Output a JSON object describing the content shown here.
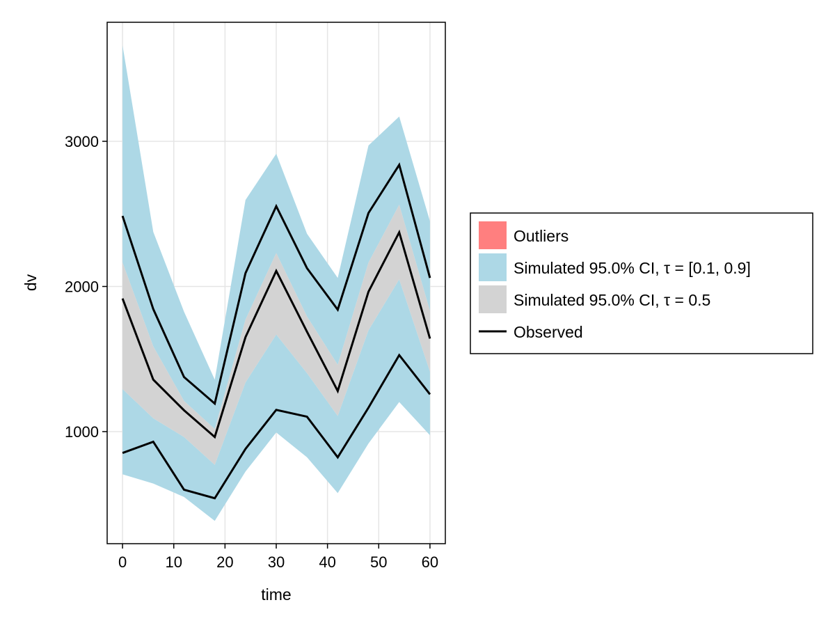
{
  "chart_data": {
    "type": "area",
    "xlabel": "time",
    "ylabel": "dv",
    "xlim": [
      -3,
      63
    ],
    "ylim": [
      228,
      3820
    ],
    "xticks": [
      0,
      10,
      20,
      30,
      40,
      50,
      60
    ],
    "yticks": [
      1000,
      2000,
      3000
    ],
    "grid": true,
    "legend_position": "right",
    "x": [
      0,
      6,
      12,
      18,
      24,
      30,
      36,
      42,
      48,
      54,
      60
    ],
    "bands": [
      {
        "name": "Simulated 95.0% CI, τ = [0.1, 0.9]",
        "role": "upper",
        "color": "#add8e6",
        "lower": [
          2165,
          1587,
          1211,
          1018,
          1771,
          2230,
          1793,
          1460,
          2164,
          2563,
          1831
        ],
        "upper": [
          3662,
          2376,
          1826,
          1358,
          2596,
          2914,
          2363,
          2059,
          2971,
          3171,
          2449
        ]
      },
      {
        "name": "Simulated 95.0% CI, τ = [0.1, 0.9]",
        "role": "lower",
        "color": "#add8e6",
        "lower": [
          706,
          642,
          550,
          385,
          725,
          994,
          823,
          576,
          918,
          1204,
          975
        ],
        "upper": [
          1293,
          1092,
          963,
          771,
          1339,
          1669,
          1403,
          1108,
          1698,
          2049,
          1413
        ]
      },
      {
        "name": "Simulated 95.0% CI, τ = 0.5",
        "role": "median",
        "color": "#d3d3d3",
        "lower": [
          1293,
          1092,
          963,
          771,
          1339,
          1669,
          1403,
          1108,
          1698,
          2049,
          1413
        ],
        "upper": [
          2165,
          1587,
          1211,
          1018,
          1771,
          2230,
          1793,
          1460,
          2164,
          2563,
          1831
        ]
      }
    ],
    "observed": {
      "name": "Observed",
      "color": "#000000",
      "lines": [
        [
          2486,
          1844,
          1376,
          1193,
          2092,
          2553,
          2126,
          1840,
          2506,
          2838,
          2059
        ],
        [
          1917,
          1358,
          1147,
          963,
          1651,
          2107,
          1688,
          1280,
          1964,
          2373,
          1641
        ],
        [
          853,
          930,
          600,
          541,
          881,
          1150,
          1103,
          823,
          1165,
          1527,
          1257
        ]
      ]
    },
    "legend": [
      {
        "label": "Outliers",
        "color": "#ff7f7f",
        "kind": "patch"
      },
      {
        "label": "Simulated 95.0% CI, τ = [0.1, 0.9]",
        "color": "#add8e6",
        "kind": "patch"
      },
      {
        "label": "Simulated 95.0% CI, τ = 0.5",
        "color": "#d3d3d3",
        "kind": "patch"
      },
      {
        "label": "Observed",
        "color": "#000000",
        "kind": "line"
      }
    ]
  }
}
